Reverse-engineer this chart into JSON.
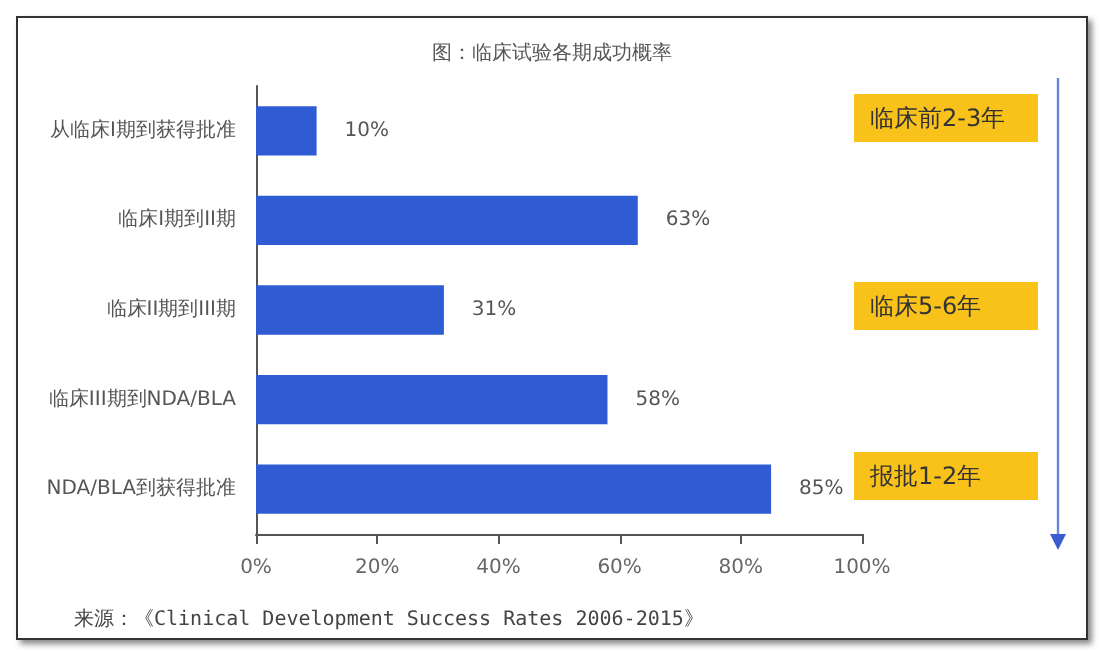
{
  "chart_data": {
    "type": "bar",
    "orientation": "horizontal",
    "title": "图：临床试验各期成功概率",
    "categories": [
      "从临床I期到获得批准",
      "临床I期到II期",
      "临床II期到III期",
      "临床III期到NDA/BLA",
      "NDA/BLA到获得批准"
    ],
    "values": [
      10,
      63,
      31,
      58,
      85
    ],
    "value_labels": [
      "10%",
      "63%",
      "31%",
      "58%",
      "85%"
    ],
    "color": "#2f5bd3",
    "xlim": [
      0,
      100
    ],
    "xticks": [
      {
        "value": 0,
        "label": "0%"
      },
      {
        "value": 20,
        "label": "20%"
      },
      {
        "value": 40,
        "label": "40%"
      },
      {
        "value": 60,
        "label": "60%"
      },
      {
        "value": 80,
        "label": "80%"
      },
      {
        "value": 100,
        "label": "100%"
      }
    ],
    "grid": false,
    "annotations": [
      "临床前2-3年",
      "临床5-6年",
      "报批1-2年",
      "来源：《Clinical Development Success Rates 2006-2015》"
    ]
  }
}
